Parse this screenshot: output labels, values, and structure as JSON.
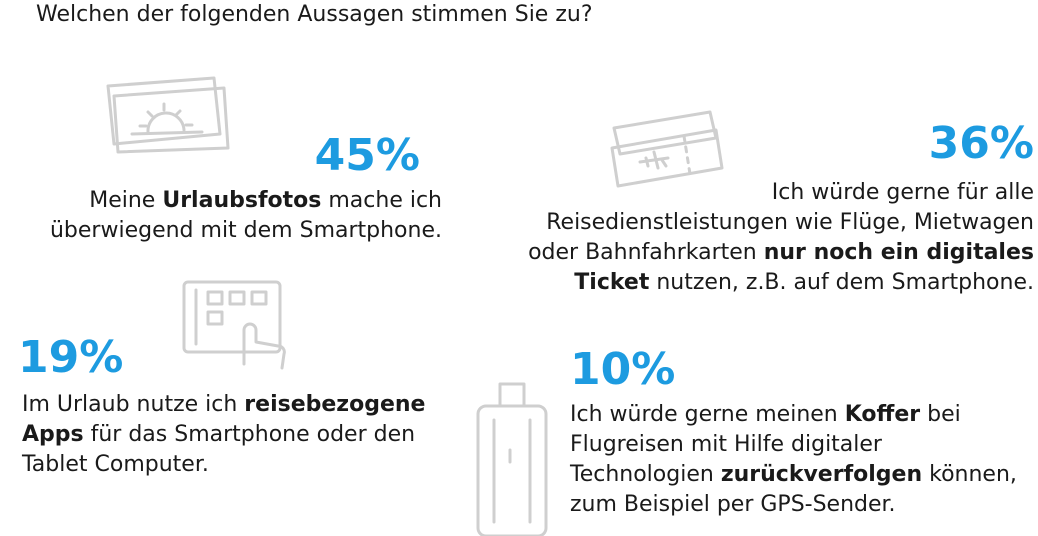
{
  "title": "Welchen der folgenden Aussagen stimmen Sie zu?",
  "chart_data": {
    "type": "bar",
    "title": "Welchen der folgenden Aussagen stimmen Sie zu?",
    "categories": [
      "Meine Urlaubsfotos mache ich überwiegend mit dem Smartphone.",
      "Ich würde gerne für alle Reisedienstleistungen wie Flüge, Mietwagen oder Bahnfahrkarten nur noch ein digitales Ticket nutzen, z.B. auf dem Smartphone.",
      "Im Urlaub nutze ich reisebezogene Apps für das Smartphone oder den Tablet Computer.",
      "Ich würde gerne meinen Koffer bei Flugreisen mit Hilfe digitaler Technologien zurückverfolgen können, zum Beispiel per GPS-Sender."
    ],
    "values": [
      45,
      36,
      19,
      10
    ],
    "unit": "%"
  },
  "items": [
    {
      "pct": "45%",
      "icon": "photo-icon",
      "lines": [
        [
          {
            "t": "Meine "
          },
          {
            "t": "Urlaubsfotos",
            "b": true
          },
          {
            "t": " mache ich"
          }
        ],
        [
          {
            "t": "überwiegend mit dem Smartphone."
          }
        ]
      ]
    },
    {
      "pct": "36%",
      "icon": "ticket-icon",
      "lines": [
        [
          {
            "t": "Ich würde gerne für alle"
          }
        ],
        [
          {
            "t": "Reisedienstleistungen wie Flüge, Mietwagen"
          }
        ],
        [
          {
            "t": "oder Bahnfahrkarten "
          },
          {
            "t": "nur noch ein digitales",
            "b": true
          }
        ],
        [
          {
            "t": "Ticket",
            "b": true
          },
          {
            "t": " nutzen, z.B. auf dem Smartphone."
          }
        ]
      ]
    },
    {
      "pct": "19%",
      "icon": "tablet-icon",
      "lines": [
        [
          {
            "t": "Im Urlaub nutze ich "
          },
          {
            "t": "reisebezogene",
            "b": true
          }
        ],
        [
          {
            "t": "Apps",
            "b": true
          },
          {
            "t": " für das Smartphone oder den"
          }
        ],
        [
          {
            "t": "Tablet Computer."
          }
        ]
      ]
    },
    {
      "pct": "10%",
      "icon": "suitcase-icon",
      "lines": [
        [
          {
            "t": "Ich würde gerne meinen "
          },
          {
            "t": "Koffer",
            "b": true
          },
          {
            "t": " bei"
          }
        ],
        [
          {
            "t": "Flugreisen mit Hilfe digitaler"
          }
        ],
        [
          {
            "t": "Technologien "
          },
          {
            "t": "zurückverfolgen",
            "b": true
          },
          {
            "t": " können,"
          }
        ],
        [
          {
            "t": "zum Beispiel per GPS-Sender."
          }
        ]
      ]
    }
  ]
}
